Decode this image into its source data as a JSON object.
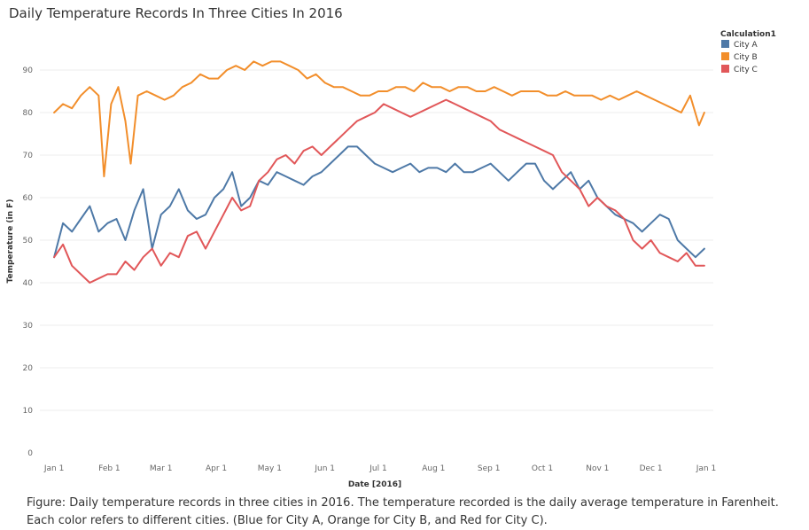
{
  "chart_data": {
    "type": "line",
    "title": "Daily Temperature Records In Three Cities In 2016",
    "xlabel": "Date [2016]",
    "ylabel": "Temperature (in F)",
    "ylim": [
      0,
      95
    ],
    "yticks": [
      0,
      10,
      20,
      30,
      40,
      50,
      60,
      70,
      80,
      90
    ],
    "xticks": [
      {
        "label": "Jan 1",
        "day": 0
      },
      {
        "label": "Feb 1",
        "day": 31
      },
      {
        "label": "Mar 1",
        "day": 60
      },
      {
        "label": "Apr 1",
        "day": 91
      },
      {
        "label": "May 1",
        "day": 121
      },
      {
        "label": "Jun 1",
        "day": 152
      },
      {
        "label": "Jul 1",
        "day": 182
      },
      {
        "label": "Aug 1",
        "day": 213
      },
      {
        "label": "Sep 1",
        "day": 244
      },
      {
        "label": "Oct 1",
        "day": 274
      },
      {
        "label": "Nov 1",
        "day": 305
      },
      {
        "label": "Dec 1",
        "day": 335
      },
      {
        "label": "Jan 1",
        "day": 366
      }
    ],
    "xlim": [
      -8,
      370
    ],
    "grid": "horizontal",
    "legend_title": "Calculation1",
    "legend_position": "top-right",
    "series": [
      {
        "name": "City A",
        "color": "#4e79a7",
        "x": [
          0,
          5,
          10,
          15,
          20,
          25,
          30,
          35,
          40,
          45,
          50,
          55,
          60,
          65,
          70,
          75,
          80,
          85,
          90,
          95,
          100,
          105,
          110,
          115,
          120,
          125,
          130,
          135,
          140,
          145,
          150,
          155,
          160,
          165,
          170,
          175,
          180,
          185,
          190,
          195,
          200,
          205,
          210,
          215,
          220,
          225,
          230,
          235,
          240,
          245,
          250,
          255,
          260,
          265,
          270,
          275,
          280,
          285,
          290,
          295,
          300,
          305,
          310,
          315,
          320,
          325,
          330,
          335,
          340,
          345,
          350,
          355,
          360,
          365
        ],
        "values": [
          46,
          54,
          52,
          55,
          58,
          52,
          54,
          55,
          50,
          57,
          62,
          48,
          56,
          58,
          62,
          57,
          55,
          56,
          60,
          62,
          66,
          58,
          60,
          64,
          63,
          66,
          65,
          64,
          63,
          65,
          66,
          68,
          70,
          72,
          72,
          70,
          68,
          67,
          66,
          67,
          68,
          66,
          67,
          67,
          66,
          68,
          66,
          66,
          67,
          68,
          66,
          64,
          66,
          68,
          68,
          64,
          62,
          64,
          66,
          62,
          64,
          60,
          58,
          56,
          55,
          54,
          52,
          54,
          56,
          55,
          50,
          48,
          46,
          48
        ]
      },
      {
        "name": "City B",
        "color": "#f28e2b",
        "x": [
          0,
          5,
          10,
          15,
          20,
          25,
          28,
          32,
          36,
          40,
          43,
          47,
          52,
          57,
          62,
          67,
          72,
          77,
          82,
          87,
          92,
          97,
          102,
          107,
          112,
          117,
          122,
          127,
          132,
          137,
          142,
          147,
          152,
          157,
          162,
          167,
          172,
          177,
          182,
          187,
          192,
          197,
          202,
          207,
          212,
          217,
          222,
          227,
          232,
          237,
          242,
          247,
          252,
          257,
          262,
          267,
          272,
          277,
          282,
          287,
          292,
          297,
          302,
          307,
          312,
          317,
          322,
          327,
          332,
          337,
          342,
          347,
          352,
          357,
          362,
          365
        ],
        "values": [
          80,
          82,
          81,
          84,
          86,
          84,
          65,
          82,
          86,
          78,
          68,
          84,
          85,
          84,
          83,
          84,
          86,
          87,
          89,
          88,
          88,
          90,
          91,
          90,
          92,
          91,
          92,
          92,
          91,
          90,
          88,
          89,
          87,
          86,
          86,
          85,
          84,
          84,
          85,
          85,
          86,
          86,
          85,
          87,
          86,
          86,
          85,
          86,
          86,
          85,
          85,
          86,
          85,
          84,
          85,
          85,
          85,
          84,
          84,
          85,
          84,
          84,
          84,
          83,
          84,
          83,
          84,
          85,
          84,
          83,
          82,
          81,
          80,
          84,
          77,
          80
        ]
      },
      {
        "name": "City C",
        "color": "#e15759",
        "x": [
          0,
          5,
          10,
          15,
          20,
          25,
          30,
          35,
          40,
          45,
          50,
          55,
          60,
          65,
          70,
          75,
          80,
          85,
          90,
          95,
          100,
          105,
          110,
          115,
          120,
          125,
          130,
          135,
          140,
          145,
          150,
          155,
          160,
          165,
          170,
          175,
          180,
          185,
          190,
          195,
          200,
          205,
          210,
          215,
          220,
          225,
          230,
          235,
          240,
          245,
          250,
          255,
          260,
          265,
          270,
          275,
          280,
          285,
          290,
          295,
          300,
          305,
          310,
          315,
          320,
          325,
          330,
          335,
          340,
          345,
          350,
          355,
          360,
          365
        ],
        "values": [
          46,
          49,
          44,
          42,
          40,
          41,
          42,
          42,
          45,
          43,
          46,
          48,
          44,
          47,
          46,
          51,
          52,
          48,
          52,
          56,
          60,
          57,
          58,
          64,
          66,
          69,
          70,
          68,
          71,
          72,
          70,
          72,
          74,
          76,
          78,
          79,
          80,
          82,
          81,
          80,
          79,
          80,
          81,
          82,
          83,
          82,
          81,
          80,
          79,
          78,
          76,
          75,
          74,
          73,
          72,
          71,
          70,
          66,
          64,
          62,
          58,
          60,
          58,
          57,
          55,
          50,
          48,
          50,
          47,
          46,
          45,
          47,
          44,
          44
        ]
      }
    ]
  },
  "caption": "Figure: Daily temperature records in three cities in 2016. The temperature recorded is the daily average temperature in Farenheit. Each color refers to different cities. (Blue for City A, Orange for City B, and Red for City C)."
}
